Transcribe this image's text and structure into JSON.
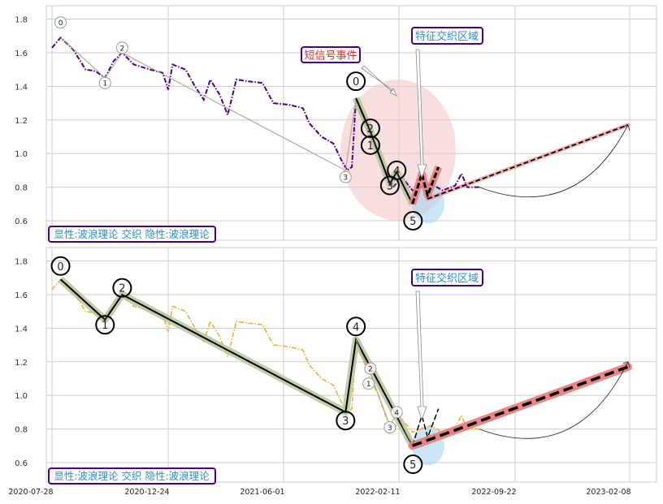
{
  "chart_data": {
    "type": "line",
    "x_ticks": [
      "2020-07-28",
      "2020-12-24",
      "2021-06-01",
      "2022-02-11",
      "2022-09-22",
      "2023-02-08"
    ],
    "y_ticks": [
      0.6,
      0.8,
      1.0,
      1.2,
      1.4,
      1.6,
      1.8
    ],
    "ylim": [
      0.484,
      1.88
    ],
    "grid": true,
    "colors": {
      "top_price": "#4b0082",
      "bottom_price": "#f0b030",
      "wave_halo": "#b5c59a",
      "projection_halo": "#e87a7a",
      "event_ellipse": "#f2c4c4",
      "zone_ellipse": "#a9d3f0",
      "box_border": "#4b0082",
      "event_text": "#d03030",
      "zone_text": "#2a8fc8"
    },
    "price": [
      [
        "2020-07-28",
        1.63
      ],
      [
        "2020-08-08",
        1.69
      ],
      [
        "2020-08-24",
        1.62
      ],
      [
        "2020-09-09",
        1.5
      ],
      [
        "2020-09-22",
        1.49
      ],
      [
        "2020-10-04",
        1.45
      ],
      [
        "2020-10-15",
        1.55
      ],
      [
        "2020-10-26",
        1.6
      ],
      [
        "2020-11-10",
        1.53
      ],
      [
        "2020-12-01",
        1.5
      ],
      [
        "2020-12-17",
        1.48
      ],
      [
        "2020-12-24",
        1.38
      ],
      [
        "2020-12-30",
        1.53
      ],
      [
        "2021-01-17",
        1.5
      ],
      [
        "2021-01-30",
        1.4
      ],
      [
        "2021-02-11",
        1.32
      ],
      [
        "2021-02-20",
        1.44
      ],
      [
        "2021-03-05",
        1.35
      ],
      [
        "2021-03-16",
        1.23
      ],
      [
        "2021-03-28",
        1.44
      ],
      [
        "2021-04-14",
        1.43
      ],
      [
        "2021-05-03",
        1.42
      ],
      [
        "2021-05-18",
        1.3
      ],
      [
        "2021-06-13",
        1.29
      ],
      [
        "2021-07-14",
        1.27
      ],
      [
        "2021-07-28",
        1.18
      ],
      [
        "2021-08-24",
        1.1
      ],
      [
        "2021-09-19",
        1.06
      ],
      [
        "2021-10-07",
        0.96
      ],
      [
        "2021-10-20",
        0.9
      ],
      [
        "2021-10-30",
        0.92
      ],
      [
        "2021-11-08",
        1.33
      ],
      [
        "2021-11-22",
        1.22
      ],
      [
        "2021-12-10",
        1.1
      ],
      [
        "2021-12-28",
        1.0
      ],
      [
        "2022-01-15",
        0.86
      ],
      [
        "2022-01-29",
        0.8
      ],
      [
        "2022-02-17",
        0.86
      ],
      [
        "2022-03-09",
        0.78
      ],
      [
        "2022-03-25",
        0.8
      ],
      [
        "2022-04-13",
        0.82
      ],
      [
        "2022-05-06",
        0.78
      ],
      [
        "2022-05-30",
        0.81
      ],
      [
        "2022-06-11",
        0.88
      ],
      [
        "2022-06-22",
        0.8
      ],
      [
        "2022-07-15",
        0.8
      ]
    ],
    "panels": [
      {
        "price_color": "top_price",
        "legend_box": "显性:波浪理论 交织 隐性:波浪理论",
        "zone_label": "特征交织区域",
        "event_label": "短信号事件",
        "large_wave": {
          "points": [
            [
              "2020-08-08",
              1.69
            ],
            [
              "2020-10-04",
              1.45
            ],
            [
              "2020-10-26",
              1.6
            ],
            [
              "2021-10-16",
              0.9
            ],
            [
              "2021-11-08",
              1.33
            ]
          ],
          "labels": [
            [
              "0",
              "2020-08-08",
              1.78
            ],
            [
              "1",
              "2020-10-04",
              1.42
            ],
            [
              "2",
              "2020-10-26",
              1.63
            ],
            [
              "3",
              "2021-10-16",
              0.86
            ]
          ],
          "style": "small"
        },
        "small_wave": {
          "points": [
            [
              "2021-11-08",
              1.33
            ],
            [
              "2021-12-10",
              1.13
            ],
            [
              "2022-01-22",
              0.82
            ],
            [
              "2022-02-06",
              0.89
            ],
            [
              "2022-03-09",
              0.7
            ]
          ],
          "labels": [
            [
              "0",
              "2021-11-08",
              1.43
            ],
            [
              "2",
              "2021-12-10",
              1.15
            ],
            [
              "1",
              "2021-12-10",
              1.05
            ],
            [
              "4",
              "2022-02-06",
              0.9
            ],
            [
              "3",
              "2022-01-22",
              0.81
            ],
            [
              "5",
              "2022-03-10",
              0.6
            ]
          ],
          "style": "big"
        },
        "zigzag": [
          [
            "2022-03-09",
            0.7
          ],
          [
            "2022-03-27",
            0.88
          ],
          [
            "2022-04-07",
            0.75
          ],
          [
            "2022-04-28",
            0.92
          ]
        ],
        "projection": [
          [
            "2022-04-07",
            0.73
          ],
          [
            "2023-02-06",
            1.17
          ]
        ],
        "arc": [
          [
            "2022-07-15",
            0.8
          ],
          [
            "2023-02-06",
            1.17
          ]
        ],
        "has_event_ellipse": true
      },
      {
        "price_color": "bottom_price",
        "legend_box": "显性:波浪理论 交织 隐性:波浪理论",
        "zone_label": "特征交织区域",
        "large_wave": {
          "points": [
            [
              "2020-08-08",
              1.69
            ],
            [
              "2020-10-04",
              1.45
            ],
            [
              "2020-10-26",
              1.6
            ],
            [
              "2021-10-16",
              0.9
            ],
            [
              "2021-11-08",
              1.33
            ],
            [
              "2022-03-09",
              0.7
            ]
          ],
          "labels": [
            [
              "0",
              "2020-08-08",
              1.77
            ],
            [
              "1",
              "2020-10-04",
              1.42
            ],
            [
              "2",
              "2020-10-26",
              1.64
            ],
            [
              "3",
              "2021-10-16",
              0.85
            ],
            [
              "4",
              "2021-11-08",
              1.41
            ],
            [
              "5",
              "2022-03-10",
              0.59
            ]
          ],
          "style": "big"
        },
        "small_wave": {
          "points": [
            [
              "2021-11-08",
              1.33
            ],
            [
              "2021-12-10",
              1.13
            ],
            [
              "2022-01-22",
              0.82
            ],
            [
              "2022-02-06",
              0.89
            ],
            [
              "2022-03-09",
              0.7
            ]
          ],
          "labels": [
            [
              "2",
              "2021-12-10",
              1.16
            ],
            [
              "1",
              "2021-12-06",
              1.07
            ],
            [
              "4",
              "2022-02-06",
              0.9
            ],
            [
              "3",
              "2022-01-22",
              0.81
            ]
          ],
          "style": "small"
        },
        "zigzag": [
          [
            "2022-03-09",
            0.7
          ],
          [
            "2022-03-27",
            0.88
          ],
          [
            "2022-04-07",
            0.75
          ],
          [
            "2022-04-28",
            0.92
          ]
        ],
        "projection": [
          [
            "2022-03-09",
            0.7
          ],
          [
            "2023-02-06",
            1.17
          ]
        ],
        "arc": [
          [
            "2022-07-15",
            0.8
          ],
          [
            "2023-02-06",
            1.2
          ]
        ],
        "has_event_ellipse": false
      }
    ]
  }
}
